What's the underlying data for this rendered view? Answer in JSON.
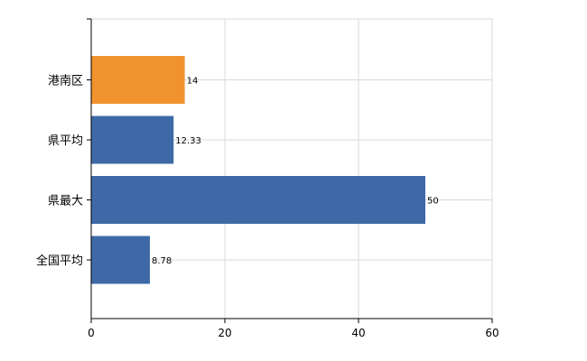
{
  "chart_data": {
    "type": "bar",
    "orientation": "horizontal",
    "categories": [
      "港南区",
      "県平均",
      "県最大",
      "全国平均"
    ],
    "values": [
      14,
      12.33,
      50,
      8.78
    ],
    "data_labels": [
      "14",
      "12.33",
      "50",
      "8.78"
    ],
    "bar_colors": [
      "#f0922e",
      "#3d6aa6",
      "#3d6aa6",
      "#3d6aa6"
    ],
    "x_ticks": [
      0,
      20,
      40,
      60
    ],
    "xlim": [
      0,
      60
    ],
    "grid": true,
    "legend": "none",
    "title": "",
    "xlabel": "",
    "ylabel": ""
  }
}
